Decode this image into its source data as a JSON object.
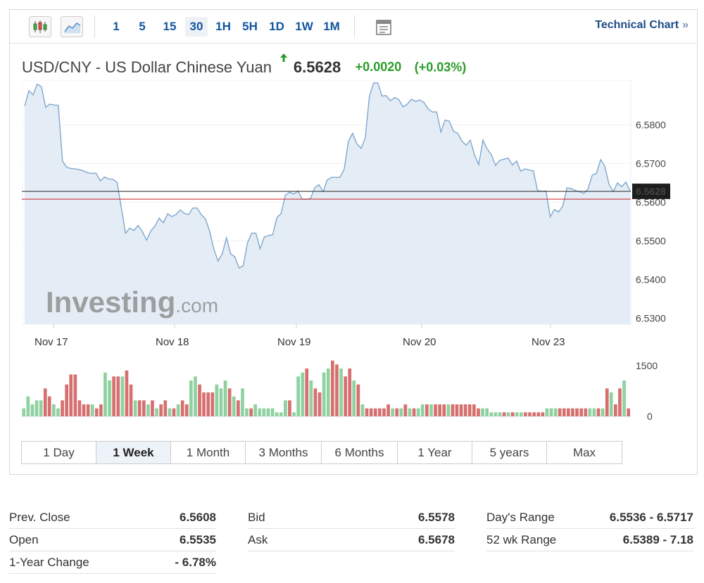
{
  "toolbar": {
    "icons": [
      "candlestick-icon",
      "area-chart-icon",
      "layout-icon"
    ],
    "intervals": [
      "1",
      "5",
      "15",
      "30",
      "1H",
      "5H",
      "1D",
      "1W",
      "1M"
    ],
    "active_interval": "30",
    "technical_chart_label": "Technical Chart",
    "technical_chart_chevron": "»"
  },
  "header": {
    "title": "USD/CNY - US Dollar Chinese Yuan",
    "price": "6.5628",
    "change": "+0.0020",
    "change_pct": "(+0.03%)"
  },
  "colors": {
    "up": "#2a9d2a",
    "line": "#7fa7cd",
    "fill": "#e4edf6",
    "prev_close_line": "#c81e1e",
    "vol_up": "#8fd1a1",
    "vol_down": "#d6706f",
    "link": "#1256a0"
  },
  "watermark": "Investing.com",
  "chart_data": {
    "type": "line",
    "y_axis": {
      "ticks": [
        "6.5800",
        "6.5700",
        "6.5600",
        "6.5500",
        "6.5400",
        "6.5300"
      ],
      "range": [
        6.5285,
        6.5915
      ]
    },
    "x_labels": [
      "Nov 17",
      "Nov 18",
      "Nov 19",
      "Nov 20",
      "Nov 23"
    ],
    "last_price_label": "6.5628",
    "last_price": 6.5628,
    "prev_close": 6.5608,
    "series": [
      {
        "values": [
          6.5848,
          6.5888,
          6.5877,
          6.5905,
          6.5898,
          6.5845,
          6.5853,
          6.5851,
          6.585,
          6.5706,
          6.569,
          6.5687,
          6.5686,
          6.5684,
          6.5681,
          6.5676,
          6.5674,
          6.5675,
          6.5655,
          6.5665,
          6.566,
          6.5659,
          6.5651,
          6.5585,
          6.552,
          6.5533,
          6.5527,
          6.554,
          6.5524,
          6.5502,
          6.5526,
          6.5538,
          6.5559,
          6.5547,
          6.557,
          6.5563,
          6.5568,
          6.558,
          6.5571,
          6.5568,
          6.5585,
          6.5585,
          6.5568,
          6.5557,
          6.5525,
          6.5478,
          6.5448,
          6.5467,
          6.5508,
          6.5467,
          6.5459,
          6.543,
          6.5436,
          6.5495,
          6.552,
          6.552,
          6.548,
          6.551,
          6.5514,
          6.5516,
          6.556,
          6.5571,
          6.5618,
          6.5626,
          6.5621,
          6.5629,
          6.5608,
          6.5607,
          6.561,
          6.5637,
          6.5645,
          6.5627,
          6.5658,
          6.5664,
          6.5664,
          6.5664,
          6.5685,
          6.5757,
          6.5778,
          6.5751,
          6.5739,
          6.5765,
          6.5873,
          6.5908,
          6.5908,
          6.5874,
          6.5875,
          6.5862,
          6.587,
          6.5865,
          6.5846,
          6.5853,
          6.5866,
          6.586,
          6.5864,
          6.5857,
          6.584,
          6.5833,
          6.5833,
          6.5781,
          6.5812,
          6.5809,
          6.5783,
          6.5778,
          6.5758,
          6.5747,
          6.576,
          6.5722,
          6.5697,
          6.576,
          6.5738,
          6.5723,
          6.5695,
          6.5708,
          6.5711,
          6.5714,
          6.5696,
          6.5706,
          6.568,
          6.5686,
          6.5683,
          6.5681,
          6.563,
          6.5628,
          6.5629,
          6.5562,
          6.5581,
          6.5575,
          6.559,
          6.5637,
          6.5635,
          6.563,
          6.5627,
          6.5623,
          6.5634,
          6.567,
          6.5674,
          6.571,
          6.5692,
          6.5646,
          6.5627,
          6.565,
          6.564,
          6.5652,
          6.5629
        ]
      }
    ],
    "volume": {
      "axis_labels": [
        "1500",
        "0"
      ],
      "max": 1500,
      "bars": [
        [
          200,
          1
        ],
        [
          500,
          1
        ],
        [
          300,
          1
        ],
        [
          400,
          1
        ],
        [
          400,
          1
        ],
        [
          700,
          0
        ],
        [
          500,
          0
        ],
        [
          300,
          1
        ],
        [
          200,
          1
        ],
        [
          400,
          0
        ],
        [
          800,
          0
        ],
        [
          1050,
          0
        ],
        [
          1050,
          0
        ],
        [
          400,
          0
        ],
        [
          300,
          0
        ],
        [
          300,
          0
        ],
        [
          300,
          1
        ],
        [
          200,
          0
        ],
        [
          300,
          0
        ],
        [
          1100,
          1
        ],
        [
          900,
          1
        ],
        [
          1000,
          0
        ],
        [
          1000,
          0
        ],
        [
          1000,
          1
        ],
        [
          1150,
          0
        ],
        [
          800,
          0
        ],
        [
          400,
          1
        ],
        [
          400,
          0
        ],
        [
          400,
          0
        ],
        [
          300,
          1
        ],
        [
          400,
          0
        ],
        [
          200,
          1
        ],
        [
          300,
          0
        ],
        [
          400,
          0
        ],
        [
          200,
          1
        ],
        [
          200,
          0
        ],
        [
          300,
          1
        ],
        [
          400,
          0
        ],
        [
          300,
          0
        ],
        [
          900,
          1
        ],
        [
          1000,
          1
        ],
        [
          800,
          0
        ],
        [
          600,
          0
        ],
        [
          600,
          0
        ],
        [
          600,
          0
        ],
        [
          800,
          1
        ],
        [
          700,
          1
        ],
        [
          900,
          1
        ],
        [
          700,
          0
        ],
        [
          500,
          1
        ],
        [
          400,
          0
        ],
        [
          700,
          1
        ],
        [
          200,
          1
        ],
        [
          200,
          0
        ],
        [
          300,
          1
        ],
        [
          200,
          1
        ],
        [
          200,
          1
        ],
        [
          200,
          1
        ],
        [
          200,
          1
        ],
        [
          100,
          1
        ],
        [
          100,
          1
        ],
        [
          400,
          1
        ],
        [
          400,
          0
        ],
        [
          100,
          1
        ],
        [
          1000,
          1
        ],
        [
          1100,
          1
        ],
        [
          1200,
          0
        ],
        [
          900,
          1
        ],
        [
          700,
          0
        ],
        [
          600,
          0
        ],
        [
          1100,
          1
        ],
        [
          1200,
          1
        ],
        [
          1400,
          0
        ],
        [
          1300,
          0
        ],
        [
          1200,
          1
        ],
        [
          1000,
          0
        ],
        [
          1200,
          0
        ],
        [
          900,
          1
        ],
        [
          800,
          0
        ],
        [
          300,
          1
        ],
        [
          200,
          0
        ],
        [
          200,
          0
        ],
        [
          200,
          0
        ],
        [
          200,
          0
        ],
        [
          200,
          0
        ],
        [
          300,
          0
        ],
        [
          200,
          1
        ],
        [
          200,
          0
        ],
        [
          200,
          1
        ],
        [
          300,
          0
        ],
        [
          200,
          1
        ],
        [
          200,
          0
        ],
        [
          200,
          1
        ],
        [
          300,
          1
        ],
        [
          300,
          0
        ],
        [
          300,
          1
        ],
        [
          300,
          0
        ],
        [
          300,
          0
        ],
        [
          300,
          0
        ],
        [
          300,
          1
        ],
        [
          300,
          0
        ],
        [
          300,
          0
        ],
        [
          300,
          0
        ],
        [
          300,
          0
        ],
        [
          300,
          0
        ],
        [
          300,
          0
        ],
        [
          200,
          0
        ],
        [
          200,
          1
        ],
        [
          200,
          1
        ],
        [
          100,
          1
        ],
        [
          100,
          1
        ],
        [
          100,
          1
        ],
        [
          100,
          0
        ],
        [
          100,
          1
        ],
        [
          100,
          0
        ],
        [
          100,
          1
        ],
        [
          100,
          1
        ],
        [
          100,
          0
        ],
        [
          100,
          0
        ],
        [
          100,
          0
        ],
        [
          100,
          0
        ],
        [
          100,
          0
        ],
        [
          200,
          1
        ],
        [
          200,
          1
        ],
        [
          200,
          1
        ],
        [
          200,
          0
        ],
        [
          200,
          0
        ],
        [
          200,
          0
        ],
        [
          200,
          0
        ],
        [
          200,
          0
        ],
        [
          200,
          0
        ],
        [
          200,
          0
        ],
        [
          200,
          1
        ],
        [
          200,
          1
        ],
        [
          200,
          0
        ],
        [
          200,
          1
        ],
        [
          700,
          0
        ],
        [
          600,
          1
        ],
        [
          300,
          0
        ],
        [
          700,
          0
        ],
        [
          900,
          1
        ],
        [
          200,
          0
        ]
      ]
    }
  },
  "range_tabs": [
    "1 Day",
    "1 Week",
    "1 Month",
    "3 Months",
    "6 Months",
    "1 Year",
    "5 years",
    "Max"
  ],
  "active_range": "1 Week",
  "stats": {
    "col1": [
      {
        "label": "Prev. Close",
        "value": "6.5608"
      },
      {
        "label": "Open",
        "value": "6.5535"
      },
      {
        "label": "1-Year Change",
        "value": "- 6.78%"
      }
    ],
    "col2": [
      {
        "label": "Bid",
        "value": "6.5578"
      },
      {
        "label": "Ask",
        "value": "6.5678"
      }
    ],
    "col3": [
      {
        "label": "Day's Range",
        "value": "6.5536 - 6.5717"
      },
      {
        "label": "52 wk Range",
        "value": "6.5389 - 7.18"
      }
    ]
  }
}
